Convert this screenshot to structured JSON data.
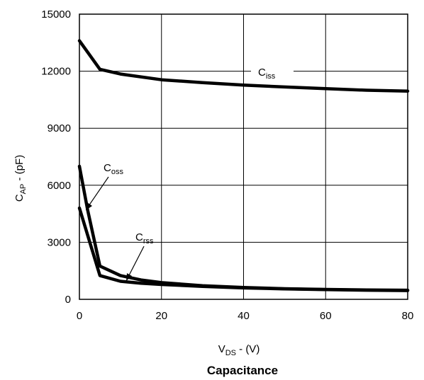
{
  "chart_data": {
    "type": "line",
    "title": "Capacitance",
    "xlabel": {
      "base": "V",
      "sub": "DS",
      "rest": " - (V)"
    },
    "ylabel": {
      "base": "C",
      "sub": "AP",
      "rest": " - (pF)"
    },
    "xlim": [
      0,
      80
    ],
    "ylim": [
      0,
      15000
    ],
    "xticks": [
      "0",
      "20",
      "40",
      "60",
      "80"
    ],
    "yticks": [
      "0",
      "3000",
      "6000",
      "9000",
      "12000",
      "15000"
    ],
    "grid": true,
    "series": [
      {
        "name": "Ciss",
        "label": {
          "base": "C",
          "sub": "iss"
        },
        "points": [
          [
            0,
            13600
          ],
          [
            5,
            12100
          ],
          [
            10,
            11850
          ],
          [
            20,
            11550
          ],
          [
            30,
            11400
          ],
          [
            40,
            11270
          ],
          [
            50,
            11170
          ],
          [
            60,
            11080
          ],
          [
            70,
            11000
          ],
          [
            80,
            10950
          ]
        ]
      },
      {
        "name": "Coss",
        "label": {
          "base": "C",
          "sub": "oss"
        },
        "points": [
          [
            0,
            7000
          ],
          [
            2,
            4700
          ],
          [
            5,
            1750
          ],
          [
            10,
            1250
          ],
          [
            15,
            1020
          ],
          [
            20,
            880
          ],
          [
            30,
            720
          ],
          [
            40,
            620
          ],
          [
            50,
            560
          ],
          [
            60,
            520
          ],
          [
            70,
            495
          ],
          [
            80,
            480
          ]
        ]
      },
      {
        "name": "Crss",
        "label": {
          "base": "C",
          "sub": "rss"
        },
        "points": [
          [
            0,
            4800
          ],
          [
            5,
            1250
          ],
          [
            10,
            950
          ],
          [
            15,
            850
          ],
          [
            20,
            780
          ],
          [
            30,
            680
          ],
          [
            40,
            600
          ],
          [
            50,
            550
          ],
          [
            60,
            510
          ],
          [
            70,
            480
          ],
          [
            80,
            460
          ]
        ]
      }
    ]
  }
}
